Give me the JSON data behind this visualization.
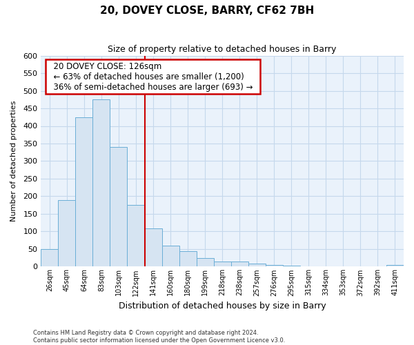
{
  "title": "20, DOVEY CLOSE, BARRY, CF62 7BH",
  "subtitle": "Size of property relative to detached houses in Barry",
  "xlabel": "Distribution of detached houses by size in Barry",
  "ylabel": "Number of detached properties",
  "footer_line1": "Contains HM Land Registry data © Crown copyright and database right 2024.",
  "footer_line2": "Contains public sector information licensed under the Open Government Licence v3.0.",
  "bar_labels": [
    "26sqm",
    "45sqm",
    "64sqm",
    "83sqm",
    "103sqm",
    "122sqm",
    "141sqm",
    "160sqm",
    "180sqm",
    "199sqm",
    "218sqm",
    "238sqm",
    "257sqm",
    "276sqm",
    "295sqm",
    "315sqm",
    "334sqm",
    "353sqm",
    "372sqm",
    "392sqm",
    "411sqm"
  ],
  "bar_values": [
    50,
    190,
    425,
    475,
    340,
    175,
    108,
    60,
    44,
    25,
    15,
    15,
    8,
    5,
    3,
    1,
    0,
    0,
    0,
    0,
    5
  ],
  "bar_color": "#d6e4f2",
  "bar_edge_color": "#6aaed6",
  "ylim": [
    0,
    600
  ],
  "yticks": [
    0,
    50,
    100,
    150,
    200,
    250,
    300,
    350,
    400,
    450,
    500,
    550,
    600
  ],
  "property_bin_index": 5,
  "property_line_color": "#cc0000",
  "annotation_title": "20 DOVEY CLOSE: 126sqm",
  "annotation_line1": "← 63% of detached houses are smaller (1,200)",
  "annotation_line2": "36% of semi-detached houses are larger (693) →",
  "annotation_box_color": "#ffffff",
  "annotation_box_edge_color": "#cc0000",
  "background_color": "#ffffff",
  "grid_color": "#c5d8ec",
  "plot_bg_color": "#eaf2fb"
}
